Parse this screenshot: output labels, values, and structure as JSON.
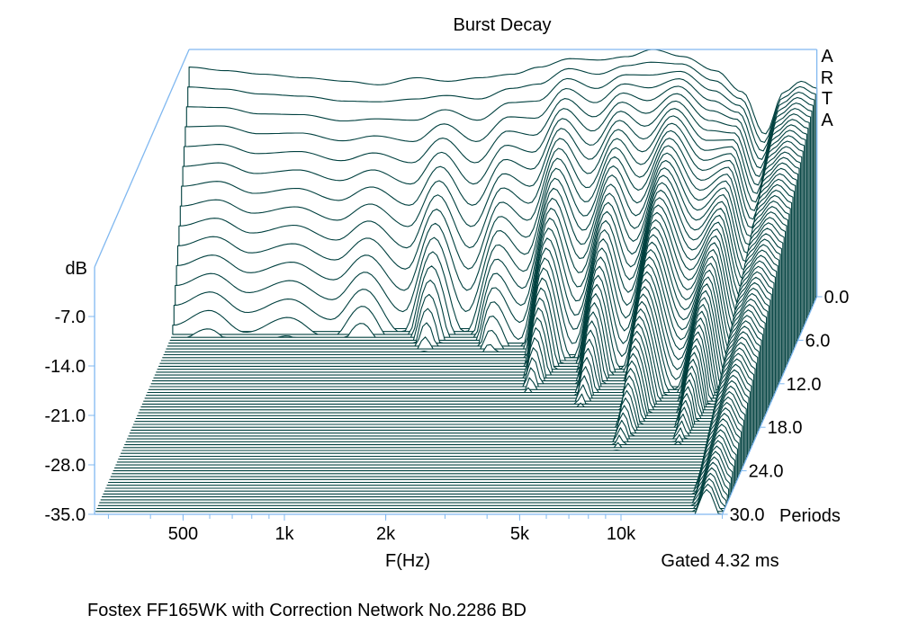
{
  "chart_data": {
    "type": "waterfall",
    "title": "Burst Decay",
    "xlabel": "F(Hz)",
    "ylabel": "dB",
    "zlabel": "Periods",
    "brand": "ARTA",
    "gate_label": "Gated 4.32 ms",
    "caption": "Fostex FF165WK with Correction Network No.2286 BD",
    "xlim": [
      273,
      20000
    ],
    "xscale": "log",
    "ylim": [
      -35,
      0
    ],
    "zlim": [
      0,
      30
    ],
    "x_ticks": [
      {
        "value": 500,
        "label": "500"
      },
      {
        "value": 1000,
        "label": "1k"
      },
      {
        "value": 2000,
        "label": "2k"
      },
      {
        "value": 5000,
        "label": "5k"
      },
      {
        "value": 10000,
        "label": "10k"
      }
    ],
    "x_minor_ticks": [
      300,
      400,
      500,
      600,
      700,
      800,
      900,
      1000,
      2000,
      3000,
      4000,
      5000,
      6000,
      7000,
      8000,
      9000,
      10000,
      20000
    ],
    "y_ticks": [
      {
        "value": -7,
        "label": "-7.0"
      },
      {
        "value": -14,
        "label": "-14.0"
      },
      {
        "value": -21,
        "label": "-21.0"
      },
      {
        "value": -28,
        "label": "-28.0"
      },
      {
        "value": -35,
        "label": "-35.0"
      }
    ],
    "z_ticks": [
      {
        "value": 0,
        "label": "0.0"
      },
      {
        "value": 6,
        "label": "6.0"
      },
      {
        "value": 12,
        "label": "12.0"
      },
      {
        "value": 18,
        "label": "18.0"
      },
      {
        "value": 24,
        "label": "24.0"
      },
      {
        "value": 30,
        "label": "30.0"
      }
    ],
    "slice_step_periods": 0.4,
    "series": {
      "freq_hz": [
        273,
        350,
        450,
        600,
        800,
        1000,
        1300,
        1600,
        2000,
        2500,
        3000,
        3700,
        4500,
        5500,
        6500,
        8000,
        10000,
        12000,
        14000,
        16000,
        18000,
        20000
      ],
      "level_db_at_0": [
        -2.5,
        -3,
        -3.5,
        -4,
        -4.5,
        -5,
        -4,
        -4.5,
        -4,
        -3.5,
        -2.5,
        -1.3,
        -1.5,
        -1,
        0,
        -1,
        -3,
        -6,
        -12,
        -6,
        -4.5,
        -5.5
      ],
      "decay_db_per_period": [
        6,
        5.5,
        6,
        5.5,
        6,
        5,
        6.5,
        4,
        6.5,
        4,
        5,
        2.5,
        4,
        2.2,
        3.5,
        1.6,
        2.5,
        1.4,
        2.0,
        1.0,
        0.9,
        1.0
      ]
    },
    "colors": {
      "line": "#00403f",
      "axis": "#80b8f0",
      "fill": "#ffffff"
    }
  }
}
